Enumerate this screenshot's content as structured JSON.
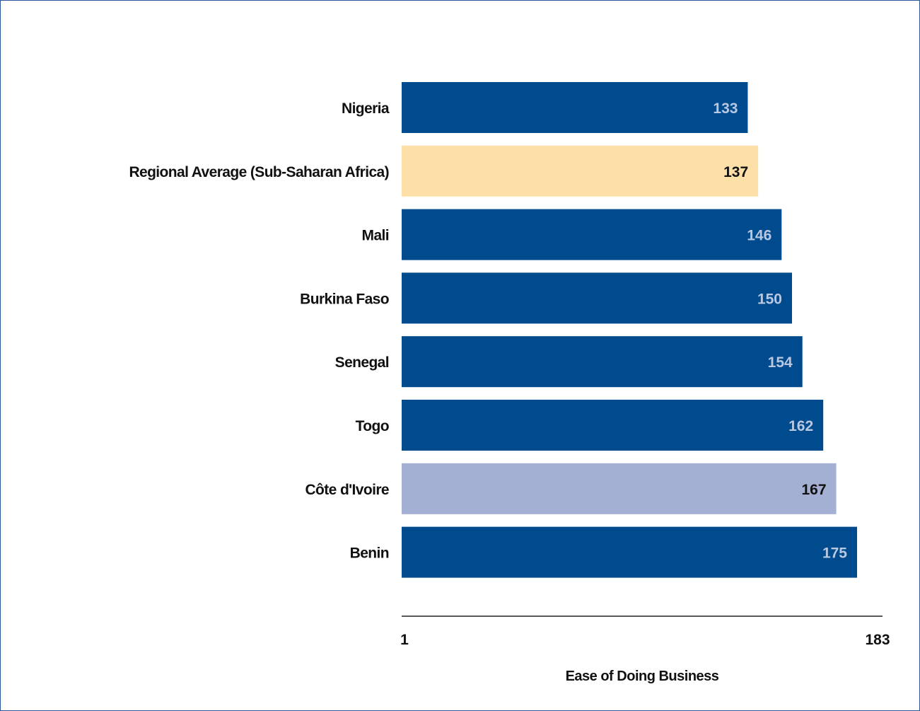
{
  "chart_data": {
    "type": "bar",
    "orientation": "horizontal",
    "categories": [
      "Nigeria",
      "Regional Average (Sub-Saharan Africa)",
      "Mali",
      "Burkina Faso",
      "Senegal",
      "Togo",
      "Côte d'Ivoire",
      "Benin"
    ],
    "values": [
      133,
      137,
      146,
      150,
      154,
      162,
      167,
      175
    ],
    "value_labels": [
      "133",
      "137",
      "146",
      "150",
      "154",
      "162",
      "167",
      "175"
    ],
    "bar_colors": [
      "#004b8d",
      "#fde0a8",
      "#004b8d",
      "#004b8d",
      "#004b8d",
      "#004b8d",
      "#a4b0d3",
      "#004b8d"
    ],
    "label_colors": [
      "#b9c8e2",
      "#111111",
      "#b9c8e2",
      "#b9c8e2",
      "#b9c8e2",
      "#b9c8e2",
      "#111111",
      "#b9c8e2"
    ],
    "xlabel": "Ease of Doing Business",
    "xlim": [
      1,
      183
    ],
    "x_tick_labels": [
      "1",
      "183"
    ],
    "grid": false,
    "legend": "none"
  }
}
